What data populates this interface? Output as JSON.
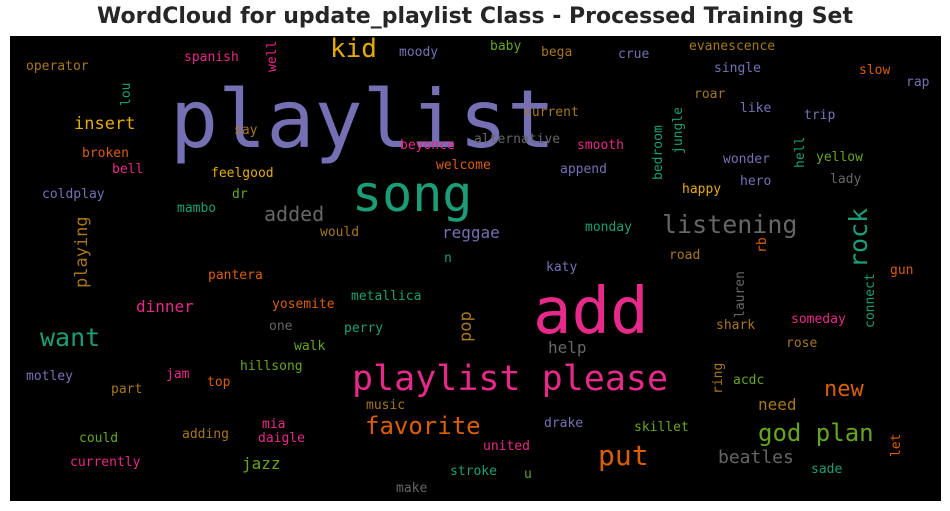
{
  "chart_data": {
    "type": "wordcloud",
    "title": "WordCloud for update_playlist Class - Processed Training Set",
    "background": "#000000",
    "words": [
      {
        "text": "playlist",
        "color": "#7570b3"
      },
      {
        "text": "add",
        "color": "#e7298a"
      },
      {
        "text": "song",
        "color": "#1b9e77"
      },
      {
        "text": "playlist please",
        "color": "#e7298a"
      },
      {
        "text": "kid",
        "color": "#e6ab02"
      },
      {
        "text": "listening",
        "color": "#666666"
      },
      {
        "text": "rock",
        "color": "#1b9e77"
      },
      {
        "text": "added",
        "color": "#666666"
      },
      {
        "text": "want",
        "color": "#1b9e77"
      },
      {
        "text": "favorite",
        "color": "#d95f02"
      },
      {
        "text": "put",
        "color": "#d95f02"
      },
      {
        "text": "god plan",
        "color": "#66a61e"
      },
      {
        "text": "new",
        "color": "#d95f02"
      },
      {
        "text": "reggae",
        "color": "#7570b3"
      },
      {
        "text": "insert",
        "color": "#e6ab02"
      },
      {
        "text": "dinner",
        "color": "#e7298a"
      },
      {
        "text": "jazz",
        "color": "#66a61e"
      },
      {
        "text": "beatles",
        "color": "#666666"
      },
      {
        "text": "playing",
        "color": "#a6761d"
      },
      {
        "text": "pop",
        "color": "#a6761d"
      },
      {
        "text": "help",
        "color": "#666666"
      },
      {
        "text": "need",
        "color": "#a6761d"
      },
      {
        "text": "spanish",
        "color": "#e7298a"
      },
      {
        "text": "well",
        "color": "#e7298a"
      },
      {
        "text": "moody",
        "color": "#7570b3"
      },
      {
        "text": "baby",
        "color": "#66a61e"
      },
      {
        "text": "bega",
        "color": "#a6761d"
      },
      {
        "text": "crue",
        "color": "#7570b3"
      },
      {
        "text": "evanescence",
        "color": "#a6761d"
      },
      {
        "text": "single",
        "color": "#7570b3"
      },
      {
        "text": "slow",
        "color": "#d95f02"
      },
      {
        "text": "rap",
        "color": "#7570b3"
      },
      {
        "text": "operator",
        "color": "#a6761d"
      },
      {
        "text": "lou",
        "color": "#1b9e77"
      },
      {
        "text": "say",
        "color": "#a6761d"
      },
      {
        "text": "current",
        "color": "#a6761d"
      },
      {
        "text": "roar",
        "color": "#a6761d"
      },
      {
        "text": "like",
        "color": "#7570b3"
      },
      {
        "text": "trip",
        "color": "#7570b3"
      },
      {
        "text": "alternative",
        "color": "#666666"
      },
      {
        "text": "beyonce",
        "color": "#e7298a"
      },
      {
        "text": "smooth",
        "color": "#e7298a"
      },
      {
        "text": "bedroom",
        "color": "#1b9e77"
      },
      {
        "text": "jungle",
        "color": "#1b9e77"
      },
      {
        "text": "hell",
        "color": "#1b9e77"
      },
      {
        "text": "wonder",
        "color": "#7570b3"
      },
      {
        "text": "yellow",
        "color": "#66a61e"
      },
      {
        "text": "broken",
        "color": "#d95f02"
      },
      {
        "text": "bell",
        "color": "#e7298a"
      },
      {
        "text": "welcome",
        "color": "#d95f02"
      },
      {
        "text": "append",
        "color": "#7570b3"
      },
      {
        "text": "feelgood",
        "color": "#e6ab02"
      },
      {
        "text": "hero",
        "color": "#7570b3"
      },
      {
        "text": "lady",
        "color": "#666666"
      },
      {
        "text": "coldplay",
        "color": "#7570b3"
      },
      {
        "text": "dr",
        "color": "#66a61e"
      },
      {
        "text": "happy",
        "color": "#e6ab02"
      },
      {
        "text": "mambo",
        "color": "#1b9e77"
      },
      {
        "text": "would",
        "color": "#a6761d"
      },
      {
        "text": "monday",
        "color": "#1b9e77"
      },
      {
        "text": "rb",
        "color": "#d95f02"
      },
      {
        "text": "n",
        "color": "#1b9e77"
      },
      {
        "text": "road",
        "color": "#a6761d"
      },
      {
        "text": "katy",
        "color": "#7570b3"
      },
      {
        "text": "pantera",
        "color": "#d95f02"
      },
      {
        "text": "gun",
        "color": "#d95f02"
      },
      {
        "text": "metallica",
        "color": "#1b9e77"
      },
      {
        "text": "lauren",
        "color": "#666666"
      },
      {
        "text": "yosemite",
        "color": "#d95f02"
      },
      {
        "text": "connect",
        "color": "#1b9e77"
      },
      {
        "text": "one",
        "color": "#666666"
      },
      {
        "text": "perry",
        "color": "#1b9e77"
      },
      {
        "text": "shark",
        "color": "#a6761d"
      },
      {
        "text": "someday",
        "color": "#e7298a"
      },
      {
        "text": "walk",
        "color": "#66a61e"
      },
      {
        "text": "rose",
        "color": "#a6761d"
      },
      {
        "text": "hillsong",
        "color": "#66a61e"
      },
      {
        "text": "motley",
        "color": "#7570b3"
      },
      {
        "text": "jam",
        "color": "#e7298a"
      },
      {
        "text": "ring",
        "color": "#a6761d"
      },
      {
        "text": "acdc",
        "color": "#66a61e"
      },
      {
        "text": "part",
        "color": "#a6761d"
      },
      {
        "text": "top",
        "color": "#d95f02"
      },
      {
        "text": "music",
        "color": "#a6761d"
      },
      {
        "text": "mia",
        "color": "#e7298a"
      },
      {
        "text": "drake",
        "color": "#7570b3"
      },
      {
        "text": "skillet",
        "color": "#66a61e"
      },
      {
        "text": "could",
        "color": "#66a61e"
      },
      {
        "text": "adding",
        "color": "#a6761d"
      },
      {
        "text": "daigle",
        "color": "#e7298a"
      },
      {
        "text": "let",
        "color": "#d95f02"
      },
      {
        "text": "united",
        "color": "#e7298a"
      },
      {
        "text": "currently",
        "color": "#e7298a"
      },
      {
        "text": "stroke",
        "color": "#1b9e77"
      },
      {
        "text": "u",
        "color": "#66a61e"
      },
      {
        "text": "sade",
        "color": "#1b9e77"
      },
      {
        "text": "make",
        "color": "#666666"
      }
    ]
  }
}
